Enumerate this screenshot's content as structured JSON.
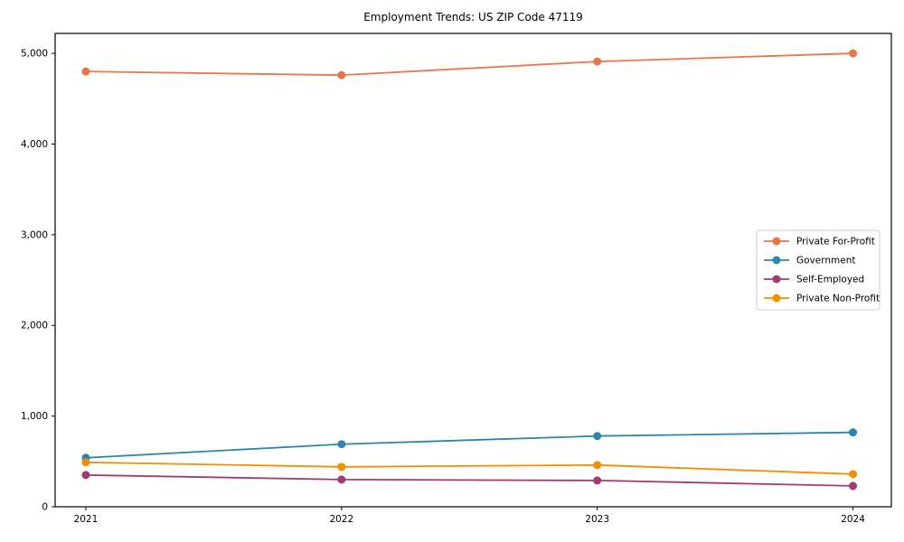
{
  "chart_data": {
    "type": "line",
    "title": "Employment Trends: US ZIP Code 47119",
    "xlabel": "",
    "ylabel": "",
    "x": [
      2021,
      2022,
      2023,
      2024
    ],
    "x_tick_labels": [
      "2021",
      "2022",
      "2023",
      "2024"
    ],
    "y_ticks": [
      0,
      1000,
      2000,
      3000,
      4000,
      5000
    ],
    "y_tick_labels": [
      "0",
      "1,000",
      "2,000",
      "3,000",
      "4,000",
      "5,000"
    ],
    "xlim": [
      2020.88,
      2024.15
    ],
    "ylim": [
      0,
      5220
    ],
    "grid": false,
    "legend_position": "center-right",
    "background_color": "#ffffff",
    "axis_color": "#000000",
    "series": [
      {
        "name": "Private For-Profit",
        "color": "#E8764B",
        "values": [
          4800,
          4760,
          4910,
          5000
        ]
      },
      {
        "name": "Government",
        "color": "#2E86AB",
        "values": [
          540,
          690,
          780,
          820
        ]
      },
      {
        "name": "Self-Employed",
        "color": "#A23B72",
        "values": [
          350,
          300,
          290,
          230
        ]
      },
      {
        "name": "Private Non-Profit",
        "color": "#F18F01",
        "values": [
          490,
          440,
          460,
          360
        ]
      }
    ]
  }
}
